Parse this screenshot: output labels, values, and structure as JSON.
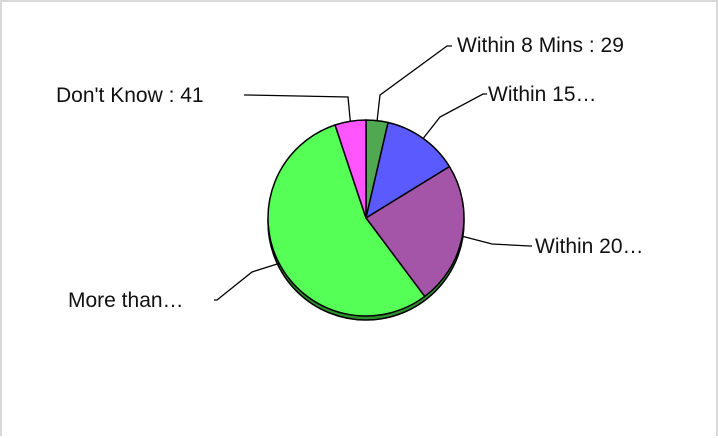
{
  "chart_data": {
    "type": "pie",
    "title": "",
    "series": [
      {
        "label": "Within 8 Mins : 29",
        "value": 29,
        "color": "#50a850"
      },
      {
        "label": "Within 15…",
        "value": 101,
        "color": "#5a5aff"
      },
      {
        "label": "Within 20…",
        "value": 189,
        "color": "#a455a8"
      },
      {
        "label": "More than…",
        "value": 442,
        "color": "#55ff55"
      },
      {
        "label": "Don't Know : 41",
        "value": 41,
        "color": "#ff55ff"
      }
    ]
  }
}
